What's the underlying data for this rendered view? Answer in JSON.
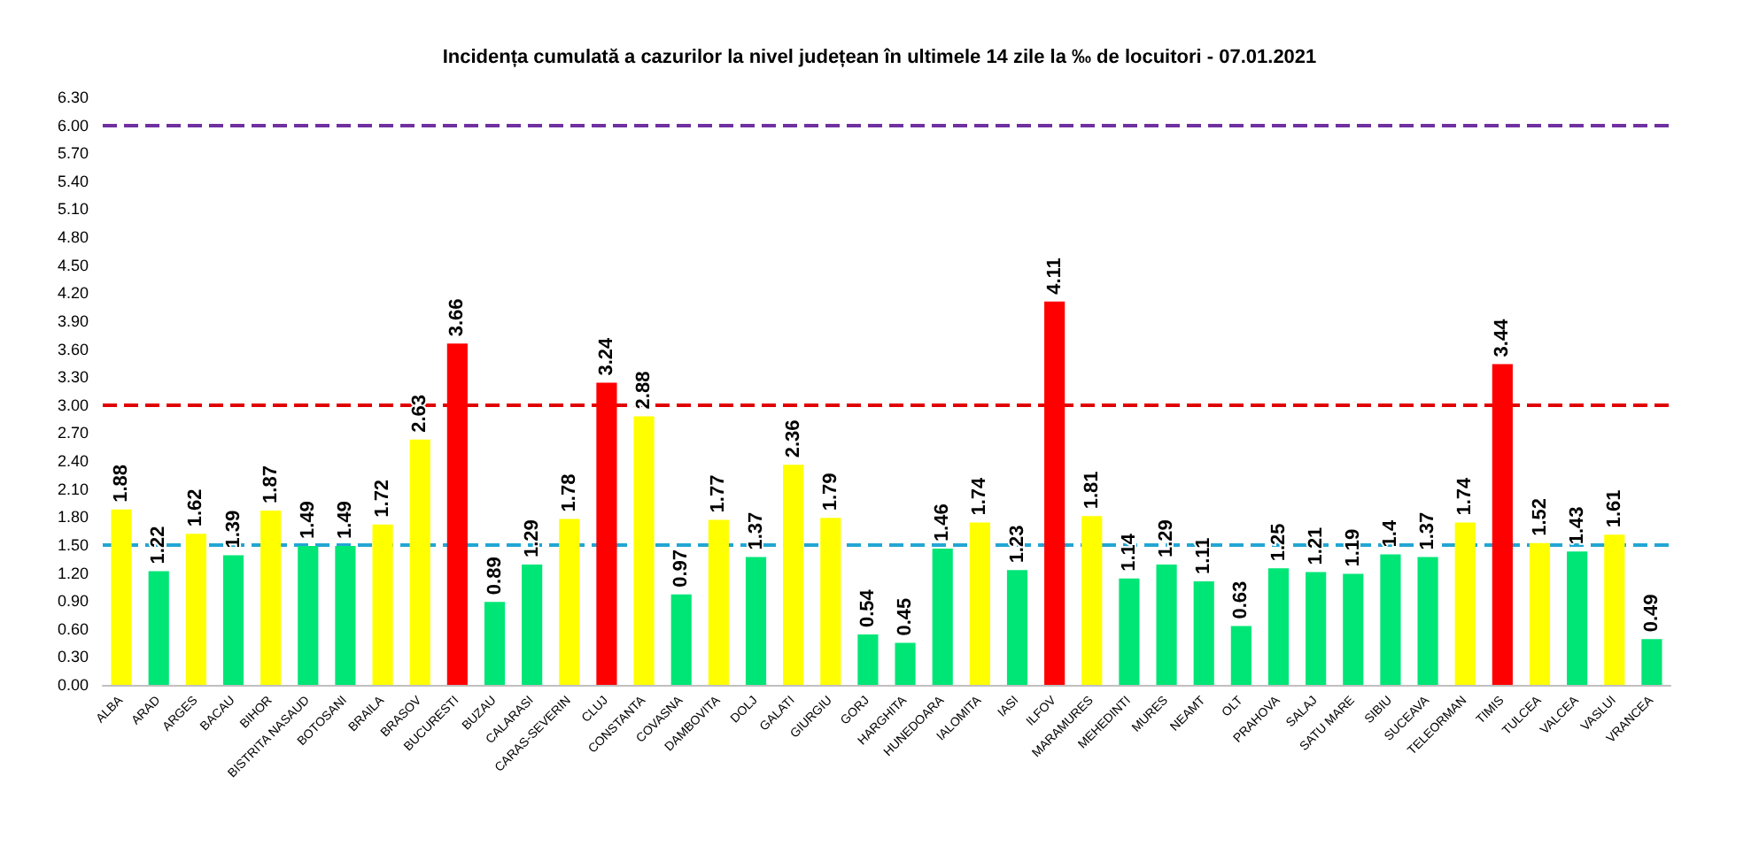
{
  "chart_data": {
    "type": "bar",
    "title": "Incidența cumulată a cazurilor la nivel județean în ultimele 14 zile la ‰ de locuitori - 07.01.2021",
    "categories": [
      "ALBA",
      "ARAD",
      "ARGES",
      "BACAU",
      "BIHOR",
      "BISTRITA NASAUD",
      "BOTOSANI",
      "BRAILA",
      "BRASOV",
      "BUCURESTI",
      "BUZAU",
      "CALARASI",
      "CARAS-SEVERIN",
      "CLUJ",
      "CONSTANTA",
      "COVASNA",
      "DAMBOVITA",
      "DOLJ",
      "GALATI",
      "GIURGIU",
      "GORJ",
      "HARGHITA",
      "HUNEDOARA",
      "IALOMITA",
      "IASI",
      "ILFOV",
      "MARAMURES",
      "MEHEDINTI",
      "MURES",
      "NEAMT",
      "OLT",
      "PRAHOVA",
      "SALAJ",
      "SATU MARE",
      "SIBIU",
      "SUCEAVA",
      "TELEORMAN",
      "TIMIS",
      "TULCEA",
      "VALCEA",
      "VASLUI",
      "VRANCEA"
    ],
    "values": [
      1.88,
      1.22,
      1.62,
      1.39,
      1.87,
      1.49,
      1.49,
      1.72,
      2.63,
      3.66,
      0.89,
      1.29,
      1.78,
      3.24,
      2.88,
      0.97,
      1.77,
      1.37,
      2.36,
      1.79,
      0.54,
      0.45,
      1.46,
      1.74,
      1.23,
      4.11,
      1.81,
      1.14,
      1.29,
      1.11,
      0.63,
      1.25,
      1.21,
      1.19,
      1.4,
      1.37,
      1.74,
      3.44,
      1.52,
      1.43,
      1.61,
      0.49
    ],
    "colors": [
      "#ffff00",
      "#00e676",
      "#ffff00",
      "#00e676",
      "#ffff00",
      "#00e676",
      "#00e676",
      "#ffff00",
      "#ffff00",
      "#ff0000",
      "#00e676",
      "#00e676",
      "#ffff00",
      "#ff0000",
      "#ffff00",
      "#00e676",
      "#ffff00",
      "#00e676",
      "#ffff00",
      "#ffff00",
      "#00e676",
      "#00e676",
      "#00e676",
      "#ffff00",
      "#00e676",
      "#ff0000",
      "#ffff00",
      "#00e676",
      "#00e676",
      "#00e676",
      "#00e676",
      "#00e676",
      "#00e676",
      "#00e676",
      "#00e676",
      "#00e676",
      "#ffff00",
      "#ff0000",
      "#ffff00",
      "#00e676",
      "#ffff00",
      "#00e676"
    ],
    "ylim": [
      0,
      6.3
    ],
    "yticks": [
      {
        "value": 0,
        "label": "0.00"
      },
      {
        "value": 0.3,
        "label": "0.30"
      },
      {
        "value": 0.6,
        "label": "0.60"
      },
      {
        "value": 0.9,
        "label": "0.90"
      },
      {
        "value": 1.2,
        "label": "1.20"
      },
      {
        "value": 1.5,
        "label": "1.50"
      },
      {
        "value": 1.8,
        "label": "1.80"
      },
      {
        "value": 2.1,
        "label": "2.10"
      },
      {
        "value": 2.4,
        "label": "2.40"
      },
      {
        "value": 2.7,
        "label": "2.70"
      },
      {
        "value": 3,
        "label": "3.00"
      },
      {
        "value": 3.3,
        "label": "3.30"
      },
      {
        "value": 3.6,
        "label": "3.60"
      },
      {
        "value": 3.9,
        "label": "3.90"
      },
      {
        "value": 4.2,
        "label": "4.20"
      },
      {
        "value": 4.5,
        "label": "4.50"
      },
      {
        "value": 4.8,
        "label": "4.80"
      },
      {
        "value": 5.1,
        "label": "5.10"
      },
      {
        "value": 5.4,
        "label": "5.40"
      },
      {
        "value": 5.7,
        "label": "5.70"
      },
      {
        "value": 6,
        "label": "6.00"
      },
      {
        "value": 6.3,
        "label": "6.30"
      }
    ],
    "ref_lines": [
      {
        "axis": "y",
        "value": 6,
        "color": "#7030a0",
        "line_style": "dashed"
      },
      {
        "axis": "y",
        "value": 3,
        "color": "#e00000",
        "line_style": "dashed"
      },
      {
        "axis": "y",
        "value": 1.5,
        "color": "#22a6d4",
        "line_style": "dashed"
      }
    ],
    "data_labels": true,
    "grid": false
  }
}
